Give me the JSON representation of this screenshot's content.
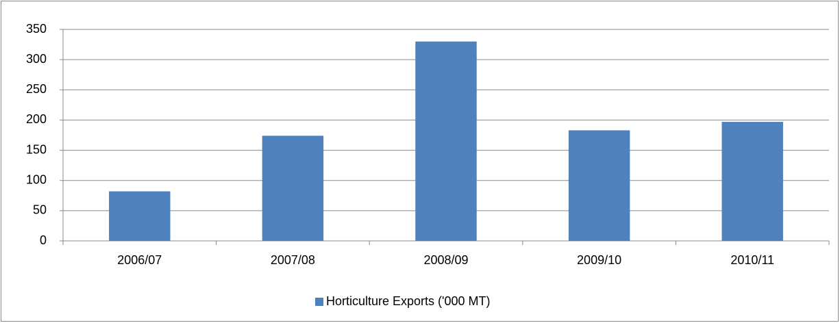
{
  "chart_data": {
    "type": "bar",
    "categories": [
      "2006/07",
      "2007/08",
      "2008/09",
      "2009/10",
      "2010/11"
    ],
    "series": [
      {
        "name": "Horticulture Exports ('000 MT)",
        "color": "#4f81bd",
        "values": [
          82,
          174,
          330,
          183,
          197
        ]
      }
    ],
    "ylim": [
      0,
      350
    ],
    "yticks": [
      0,
      50,
      100,
      150,
      200,
      250,
      300,
      350
    ],
    "grid": true,
    "legend": "bottom"
  }
}
